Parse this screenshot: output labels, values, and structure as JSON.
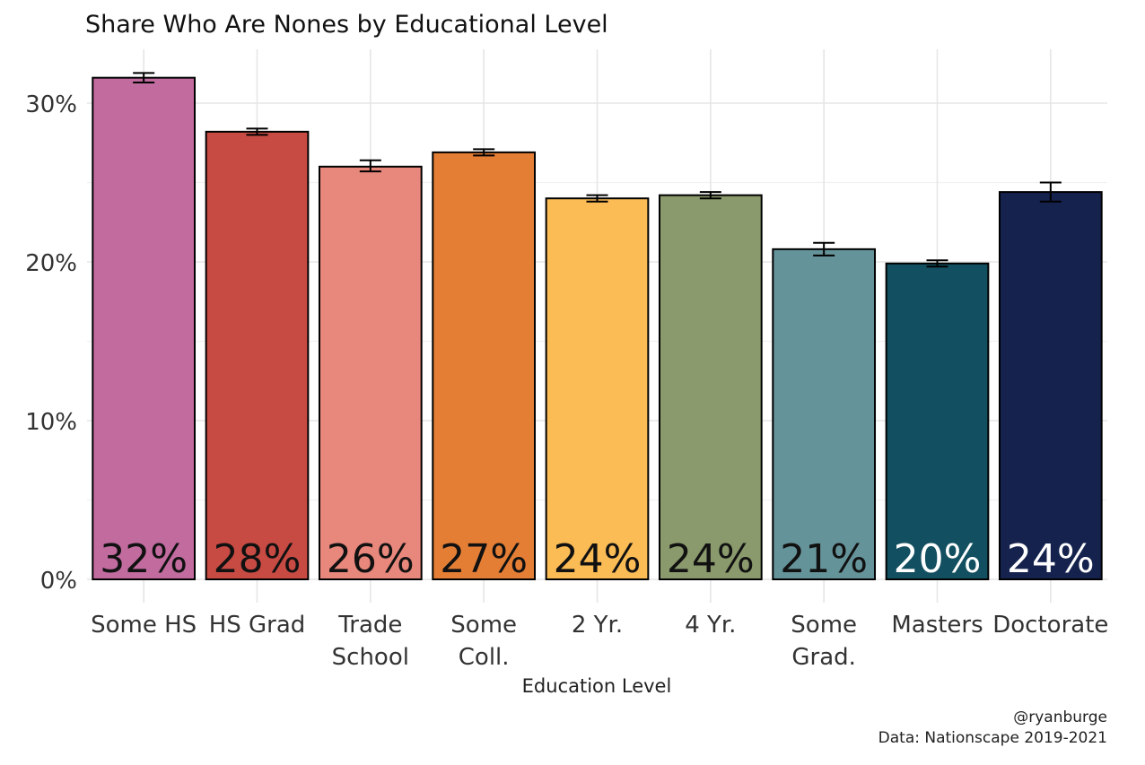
{
  "chart_data": {
    "type": "bar",
    "title": "Share Who Are Nones by Educational Level",
    "xlabel": "Education Level",
    "ylabel": "",
    "ylim": [
      0,
      0.33
    ],
    "y_ticks": [
      0,
      0.1,
      0.2,
      0.3
    ],
    "y_tick_labels": [
      "0%",
      "10%",
      "20%",
      "30%"
    ],
    "grid": true,
    "legend": "none",
    "categories": [
      [
        "Some HS"
      ],
      [
        "HS Grad"
      ],
      [
        "Trade",
        "School"
      ],
      [
        "Some",
        "Coll."
      ],
      [
        "2 Yr."
      ],
      [
        "4 Yr."
      ],
      [
        "Some",
        "Grad."
      ],
      [
        "Masters"
      ],
      [
        "Doctorate"
      ]
    ],
    "values": [
      0.316,
      0.282,
      0.26,
      0.269,
      0.24,
      0.242,
      0.208,
      0.199,
      0.244
    ],
    "error_low": [
      0.313,
      0.28,
      0.257,
      0.267,
      0.238,
      0.24,
      0.204,
      0.197,
      0.238
    ],
    "error_high": [
      0.319,
      0.284,
      0.264,
      0.271,
      0.242,
      0.244,
      0.212,
      0.201,
      0.25
    ],
    "data_labels": [
      "32%",
      "28%",
      "26%",
      "27%",
      "24%",
      "24%",
      "21%",
      "20%",
      "24%"
    ],
    "colors": [
      "#c16b9f",
      "#c84b43",
      "#e8877b",
      "#e57e35",
      "#fbbb55",
      "#8a9a6c",
      "#65939a",
      "#124f60",
      "#14224d"
    ],
    "label_colors": [
      "#111111",
      "#111111",
      "#111111",
      "#111111",
      "#111111",
      "#111111",
      "#111111",
      "#ffffff",
      "#ffffff"
    ]
  },
  "caption": {
    "line1": "@ryanburge",
    "line2": "Data: Nationscape 2019-2021"
  }
}
